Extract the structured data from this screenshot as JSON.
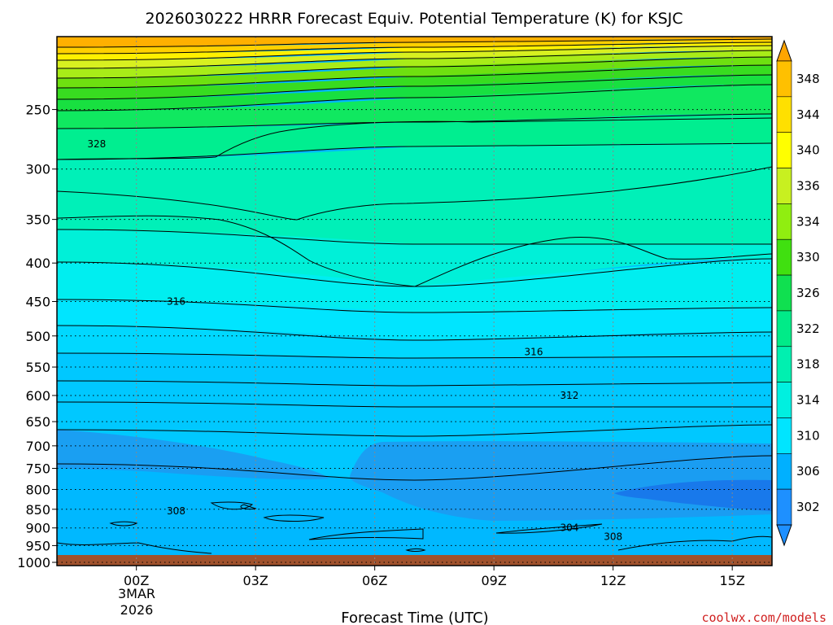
{
  "chart_data": {
    "type": "contour",
    "title": "2026030222 HRRR Forecast Equiv. Potential Temperature (K) for KSJC",
    "xlabel": "Forecast Time (UTC)",
    "ylabel": "",
    "x_ticks": [
      "00Z",
      "03Z",
      "06Z",
      "09Z",
      "12Z",
      "15Z"
    ],
    "x_date_line1": "3MAR",
    "x_date_line2": "2026",
    "x_range_hours": [
      -2,
      16
    ],
    "y_ticks": [
      250,
      300,
      350,
      400,
      450,
      500,
      550,
      600,
      650,
      700,
      750,
      800,
      850,
      900,
      950,
      1000
    ],
    "y_range_hPa": [
      200,
      1010
    ],
    "y_scale": "log",
    "grid": true,
    "colorbar": {
      "labels": [
        302,
        306,
        310,
        314,
        318,
        322,
        326,
        330,
        334,
        336,
        340,
        344,
        348
      ],
      "colors": [
        "#1e90ff",
        "#00b0ff",
        "#00e5ff",
        "#00f0e0",
        "#00f0b0",
        "#00eb88",
        "#10e050",
        "#40e010",
        "#90ee10",
        "#c8f020",
        "#ffff00",
        "#ffe000",
        "#ffc000"
      ]
    },
    "contour_labels": [
      {
        "value": "328",
        "hour": -1.0,
        "hPa": 278
      },
      {
        "value": "316",
        "hour": 1.0,
        "hPa": 450
      },
      {
        "value": "316",
        "hour": 10.0,
        "hPa": 525
      },
      {
        "value": "312",
        "hour": 10.9,
        "hPa": 600
      },
      {
        "value": "308",
        "hour": 1.0,
        "hPa": 855
      },
      {
        "value": "304",
        "hour": 10.9,
        "hPa": 900
      },
      {
        "value": "308",
        "hour": 12.0,
        "hPa": 925
      }
    ],
    "credit": "coolwx.com/models"
  }
}
